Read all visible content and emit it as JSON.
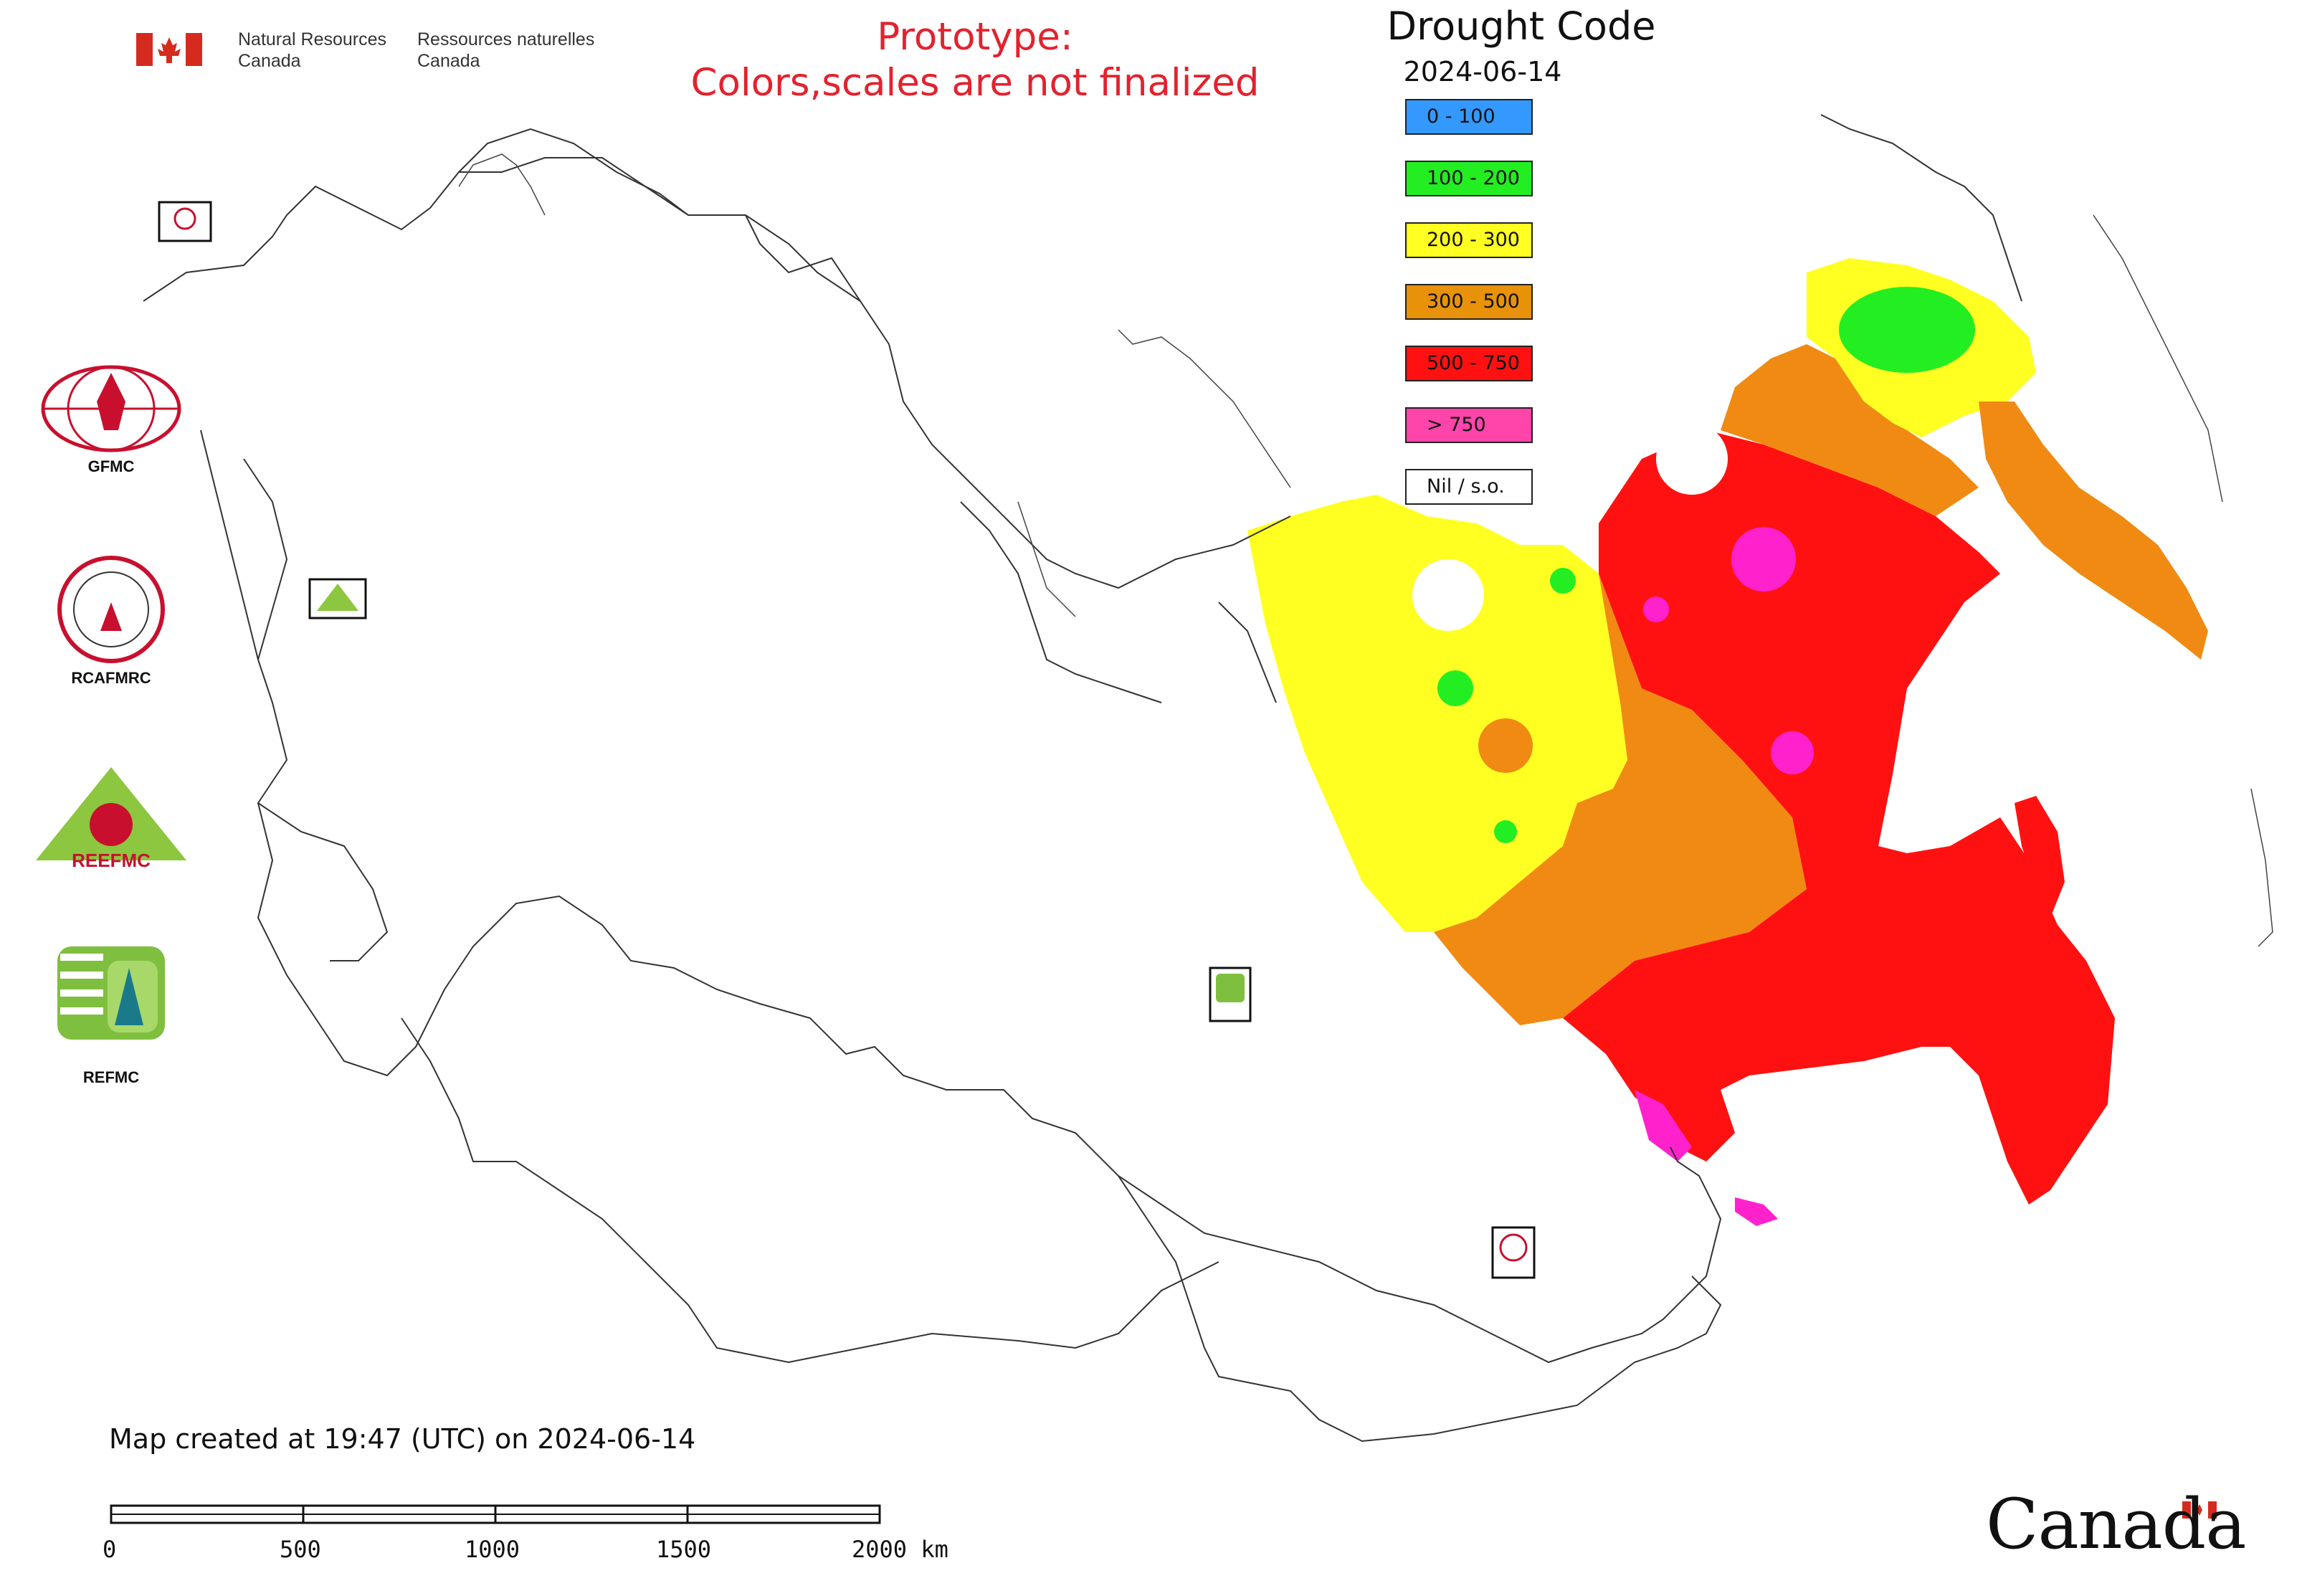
{
  "header": {
    "gov_en_line1": "Natural Resources",
    "gov_en_line2": "Canada",
    "gov_fr_line1": "Ressources naturelles",
    "gov_fr_line2": "Canada",
    "prototype_line1": "Prototype:",
    "prototype_line2": "Colors,scales are not finalized"
  },
  "legend": {
    "title": "Drought Code",
    "date": "2024-06-14",
    "items": [
      {
        "label": "0 - 100",
        "color": "#3399ff"
      },
      {
        "label": "100 - 200",
        "color": "#22ee22"
      },
      {
        "label": "200 - 300",
        "color": "#ffff22"
      },
      {
        "label": "300 - 500",
        "color": "#e8920a"
      },
      {
        "label": "500 - 750",
        "color": "#ff1111"
      },
      {
        "label": "> 750",
        "color": "#ff44aa"
      },
      {
        "label": "Nil / s.o.",
        "color": "#ffffff"
      }
    ]
  },
  "logos": {
    "gfmc": "GFMC",
    "rcafmrc": "RCAFMRC",
    "reefmc_text": "REEFMC",
    "refmc": "REFMC",
    "rcafmrc_small": "RCAFMRC"
  },
  "footer": {
    "created": "Map created at 19:47 (UTC) on 2024-06-14",
    "scale_ticks": [
      "0",
      "500",
      "1000",
      "1500",
      "2000 km"
    ],
    "wordmark": "Canada"
  },
  "colors": {
    "prototype_red": "#e3222e",
    "flag_red": "#d52b1e",
    "outline": "#333333"
  }
}
